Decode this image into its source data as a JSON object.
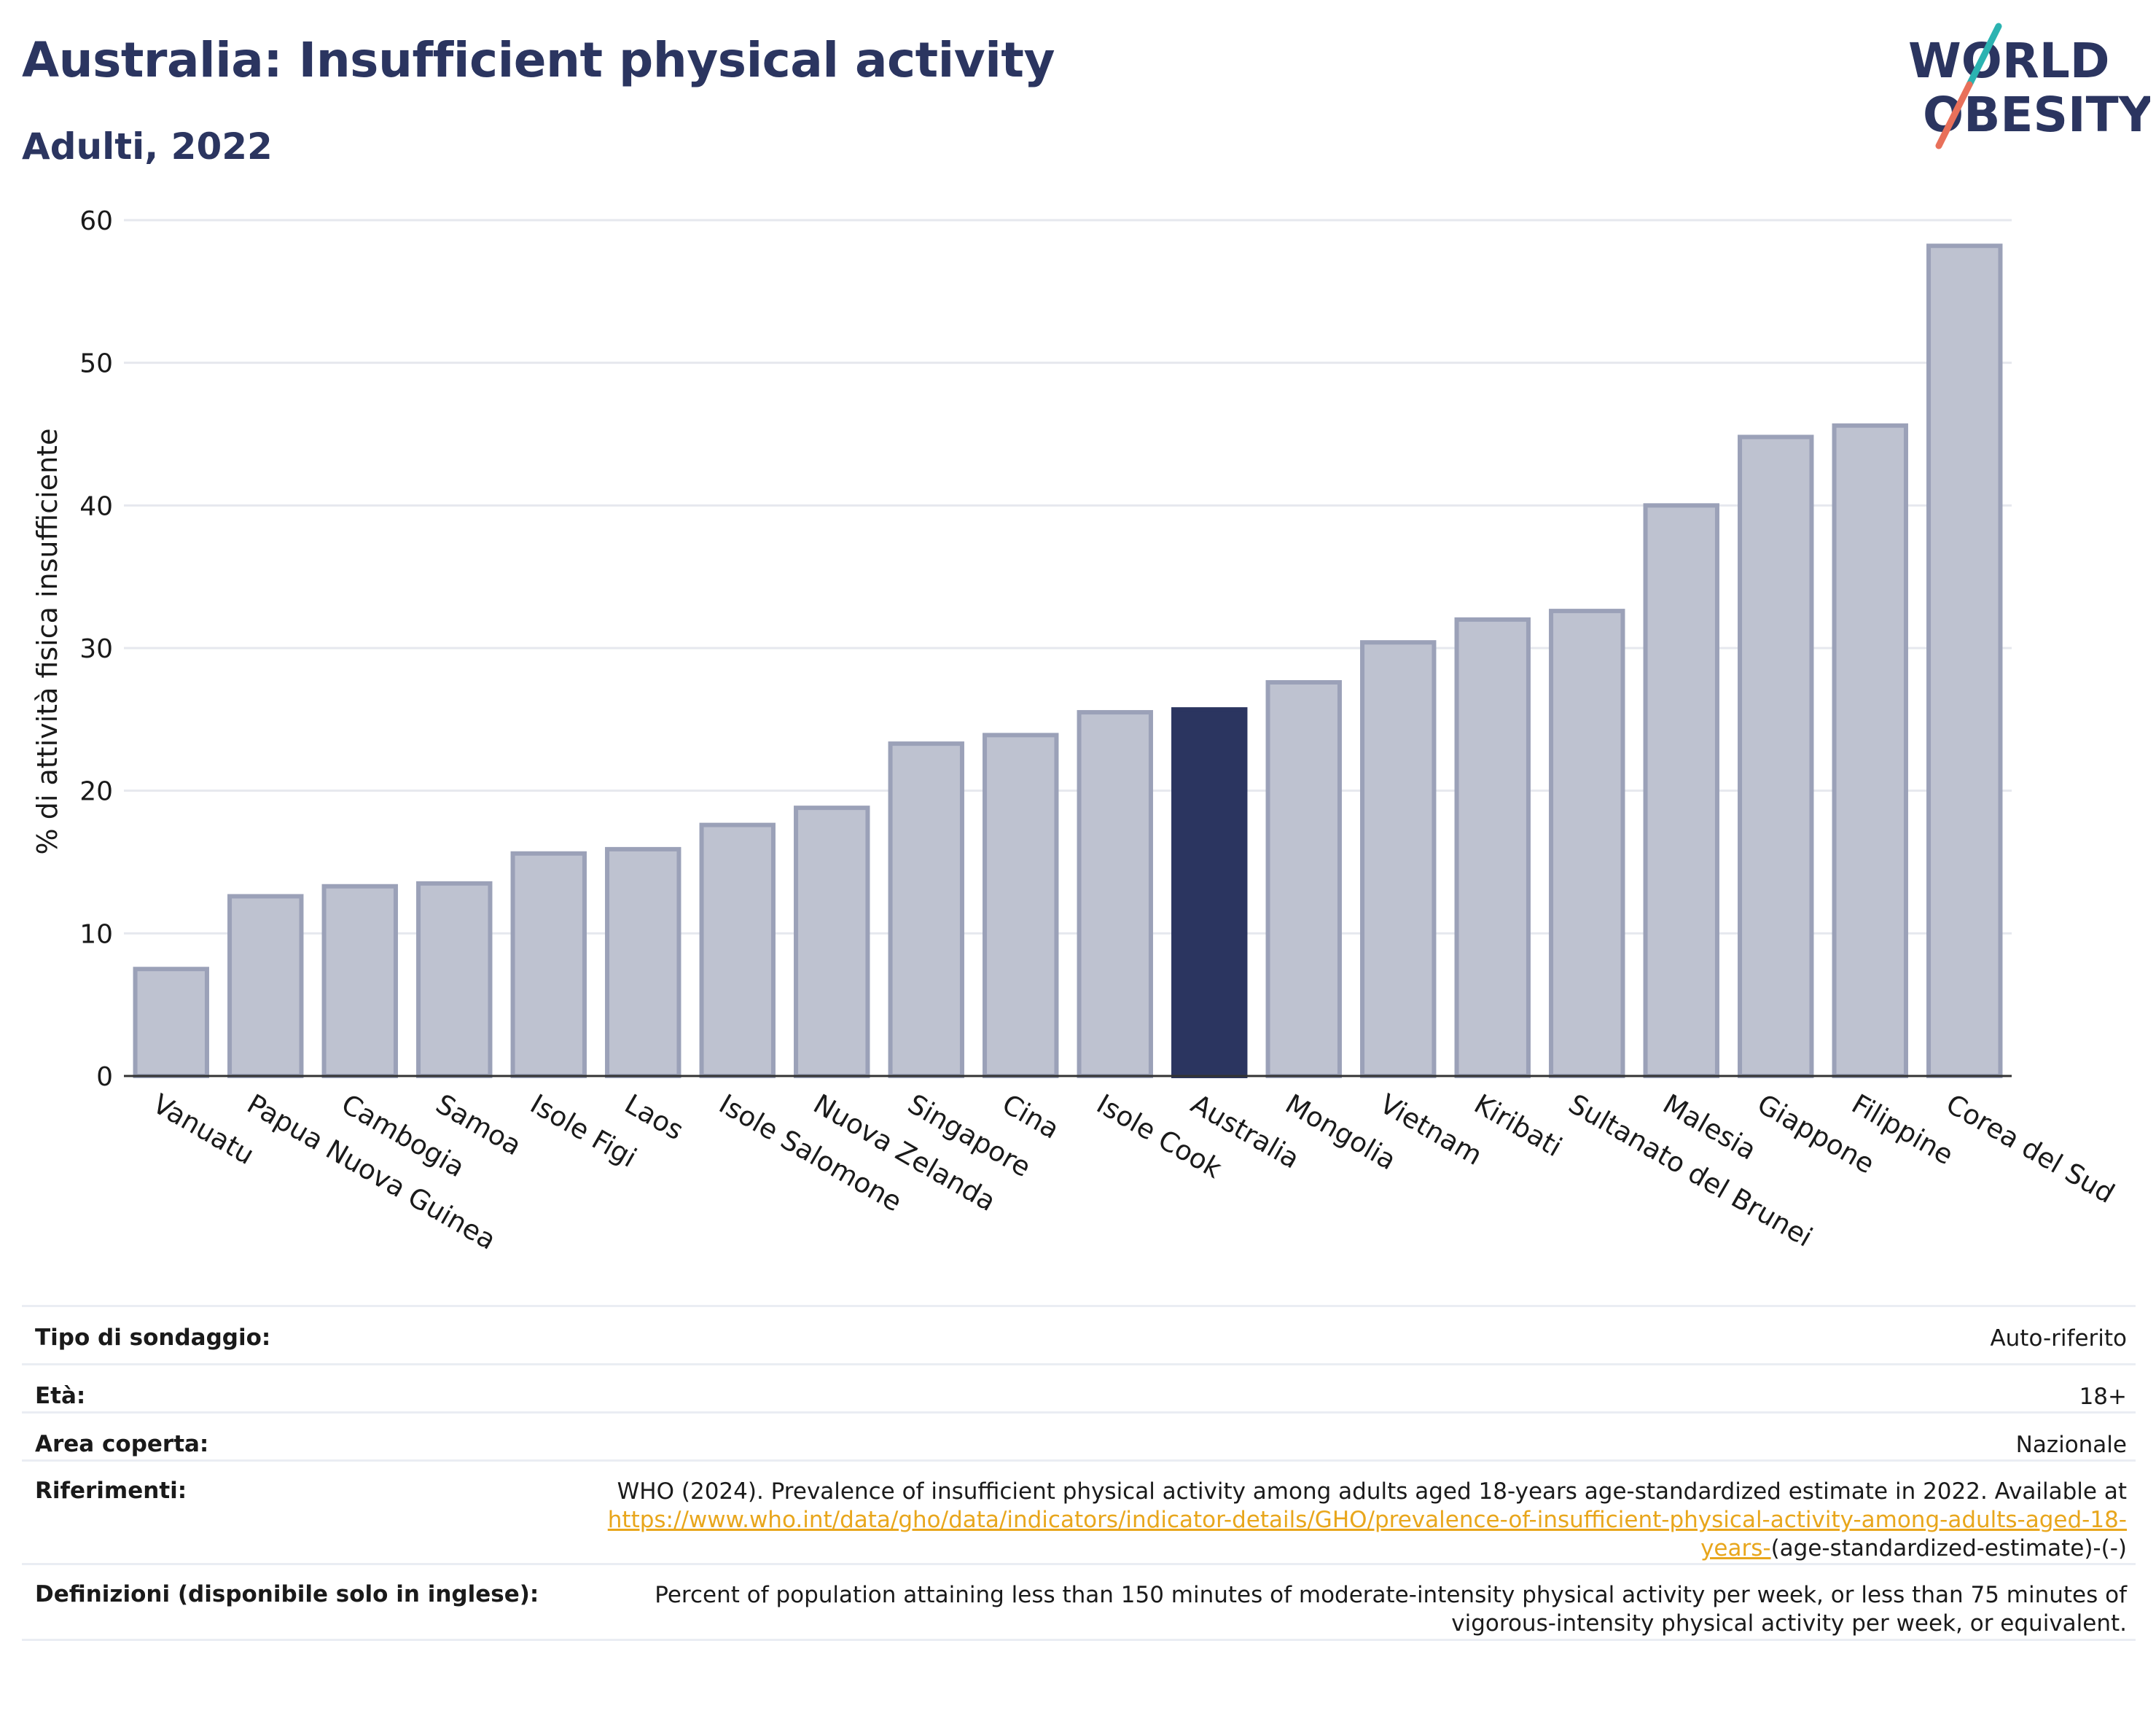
{
  "header": {
    "title": "Australia: Insufficient physical activity",
    "subtitle": "Adulti, 2022"
  },
  "logo": {
    "line1": "WORLD",
    "line2": "OBESITY",
    "colors": {
      "text": "#2b3560",
      "teal": "#2bb3b1",
      "coral": "#e8705a"
    }
  },
  "chart_data": {
    "type": "bar",
    "ylabel": "% di attività fisica insufficiente",
    "ylim": [
      0,
      60
    ],
    "yticks": [
      0,
      10,
      20,
      30,
      40,
      50,
      60
    ],
    "grid": true,
    "highlight": "Australia",
    "colors": {
      "bar": "#bec2d0",
      "bar_edge": "#9ba1b8",
      "highlight": "#2b3560",
      "grid": "#e6e8ee",
      "axis": "#333333"
    },
    "categories": [
      "Vanuatu",
      "Papua Nuova Guinea",
      "Cambogia",
      "Samoa",
      "Isole Figi",
      "Laos",
      "Isole Salomone",
      "Nuova Zelanda",
      "Singapore",
      "Cina",
      "Isole Cook",
      "Australia",
      "Mongolia",
      "Vietnam",
      "Kiribati",
      "Sultanato del Brunei",
      "Malesia",
      "Giappone",
      "Filippine",
      "Corea del Sud"
    ],
    "values": [
      7.5,
      12.6,
      13.3,
      13.5,
      15.6,
      15.9,
      17.6,
      18.8,
      23.3,
      23.9,
      25.5,
      25.7,
      27.6,
      30.4,
      32.0,
      32.6,
      40.0,
      44.8,
      45.6,
      58.2
    ]
  },
  "info": {
    "rows": [
      {
        "label": "Tipo di sondaggio:",
        "value": "Auto-riferito"
      },
      {
        "label": "Età:",
        "value": "18+"
      },
      {
        "label": "Area coperta:",
        "value": "Nazionale"
      },
      {
        "label": "Riferimenti:",
        "value": "WHO (2024). Prevalence of insufficient physical activity among adults aged 18-years age-standardized estimate in 2022. Available at",
        "link": "https://www.who.int/data/gho/data/indicators/indicator-details/GHO/prevalence-of-insufficient-physical-activity-among-adults-aged-18-years-",
        "suffix": "(age-standardized-estimate)-(-)"
      },
      {
        "label": "Definizioni (disponibile solo in inglese):",
        "value": "Percent of population attaining less than 150 minutes of moderate-intensity physical activity per week, or less than 75 minutes of vigorous-intensity physical activity per week, or equivalent."
      }
    ]
  }
}
